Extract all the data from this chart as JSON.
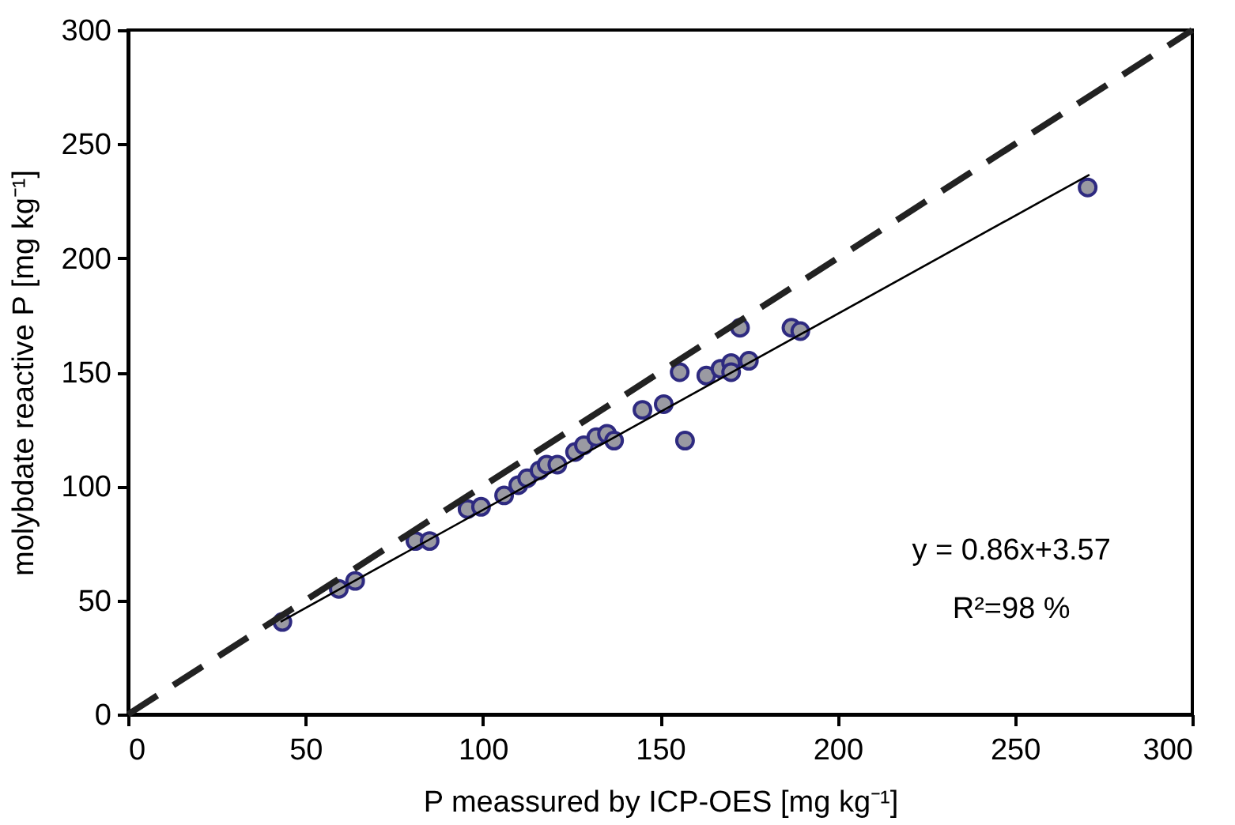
{
  "chart_data": {
    "type": "scatter",
    "xlabel": "P meassured by ICP-OES [mg kg⁻¹]",
    "ylabel": "molybdate reactive P [mg kg⁻¹]",
    "xlim": [
      0,
      300
    ],
    "ylim": [
      0,
      300
    ],
    "xticks": [
      0,
      50,
      100,
      150,
      200,
      250,
      300
    ],
    "yticks": [
      0,
      50,
      100,
      150,
      200,
      250,
      300
    ],
    "grid": false,
    "series": [
      {
        "marker": "circle",
        "color": "#9a9aa2",
        "x": [
          43.5,
          59.4,
          64,
          81,
          85,
          95.7,
          99.5,
          106,
          110,
          112.5,
          116,
          118,
          121,
          126,
          128.5,
          132,
          135,
          137,
          145,
          151,
          155.5,
          157,
          163,
          167,
          170,
          170,
          172.5,
          175,
          187,
          189.5,
          270.5
        ],
        "values": [
          40.5,
          55,
          58.5,
          76,
          76,
          90,
          91,
          96,
          100.5,
          103.5,
          107,
          109.5,
          109.5,
          115,
          118,
          121.5,
          123,
          120,
          133.5,
          136,
          150,
          120,
          148.5,
          151.5,
          154,
          150,
          169.5,
          155,
          169.5,
          168,
          231
        ]
      },
      {
        "type": "line",
        "marker": "none",
        "color": "#000000",
        "line_style": "solid",
        "x": [
          43,
          271
        ],
        "values": [
          40.6,
          236.6
        ]
      },
      {
        "type": "line",
        "marker": "none",
        "color": "#222222",
        "line_style": "dashed",
        "x": [
          0,
          300
        ],
        "values": [
          0,
          300
        ]
      }
    ],
    "annotations": [
      "y = 0.86x+3.57",
      "R²=98 %"
    ]
  }
}
